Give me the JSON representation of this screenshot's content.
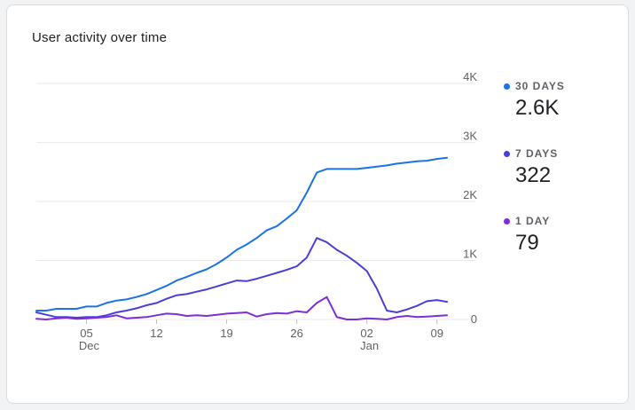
{
  "card": {
    "title": "User activity over time"
  },
  "legend": [
    {
      "label": "30 DAYS",
      "value": "2.6K",
      "color": "#1a73e8"
    },
    {
      "label": "7 DAYS",
      "value": "322",
      "color": "#4a3fd8"
    },
    {
      "label": "1 DAY",
      "value": "79",
      "color": "#7b2fd6"
    }
  ],
  "chart_data": {
    "type": "line",
    "x": [
      "Nov 30",
      "Dec 1",
      "Dec 2",
      "Dec 3",
      "Dec 4",
      "Dec 5",
      "Dec 6",
      "Dec 7",
      "Dec 8",
      "Dec 9",
      "Dec 10",
      "Dec 11",
      "Dec 12",
      "Dec 13",
      "Dec 14",
      "Dec 15",
      "Dec 16",
      "Dec 17",
      "Dec 18",
      "Dec 19",
      "Dec 20",
      "Dec 21",
      "Dec 22",
      "Dec 23",
      "Dec 24",
      "Dec 25",
      "Dec 26",
      "Dec 27",
      "Dec 28",
      "Dec 29",
      "Dec 30",
      "Dec 31",
      "Jan 1",
      "Jan 2",
      "Jan 3",
      "Jan 4",
      "Jan 5",
      "Jan 6",
      "Jan 7",
      "Jan 8",
      "Jan 9",
      "Jan 10"
    ],
    "x_tick_labels": [
      {
        "x": "Dec 5",
        "label": "05",
        "sub": "Dec"
      },
      {
        "x": "Dec 12",
        "label": "12",
        "sub": ""
      },
      {
        "x": "Dec 19",
        "label": "19",
        "sub": ""
      },
      {
        "x": "Dec 26",
        "label": "26",
        "sub": ""
      },
      {
        "x": "Jan 2",
        "label": "02",
        "sub": "Jan"
      },
      {
        "x": "Jan 9",
        "label": "09",
        "sub": ""
      }
    ],
    "y_ticks": [
      {
        "value": 0,
        "label": "0"
      },
      {
        "value": 1000,
        "label": "1K"
      },
      {
        "value": 2000,
        "label": "2K"
      },
      {
        "value": 3000,
        "label": "3K"
      },
      {
        "value": 4000,
        "label": "4K"
      }
    ],
    "ylim": [
      0,
      4000
    ],
    "grid": true,
    "series": [
      {
        "name": "30 DAYS",
        "color": "#1a73e8",
        "values": [
          150,
          150,
          180,
          180,
          180,
          220,
          220,
          280,
          320,
          340,
          380,
          430,
          500,
          570,
          660,
          720,
          790,
          850,
          940,
          1050,
          1180,
          1270,
          1380,
          1510,
          1580,
          1710,
          1850,
          2150,
          2490,
          2550,
          2550,
          2550,
          2550,
          2570,
          2590,
          2610,
          2640,
          2660,
          2680,
          2690,
          2720,
          2740
        ]
      },
      {
        "name": "7 DAYS",
        "color": "#4a3fd8",
        "values": [
          120,
          80,
          40,
          40,
          30,
          40,
          40,
          70,
          120,
          150,
          190,
          240,
          280,
          350,
          410,
          430,
          470,
          510,
          560,
          610,
          660,
          650,
          690,
          740,
          790,
          840,
          900,
          1050,
          1380,
          1310,
          1180,
          1080,
          960,
          820,
          520,
          150,
          120,
          170,
          230,
          310,
          330,
          300
        ]
      },
      {
        "name": "1 DAY",
        "color": "#7b2fd6",
        "values": [
          10,
          0,
          20,
          30,
          10,
          20,
          30,
          40,
          70,
          20,
          30,
          40,
          70,
          100,
          90,
          60,
          70,
          60,
          80,
          100,
          110,
          120,
          50,
          90,
          110,
          100,
          140,
          120,
          280,
          380,
          40,
          0,
          0,
          20,
          10,
          0,
          40,
          60,
          40,
          50,
          60,
          70
        ]
      }
    ]
  }
}
